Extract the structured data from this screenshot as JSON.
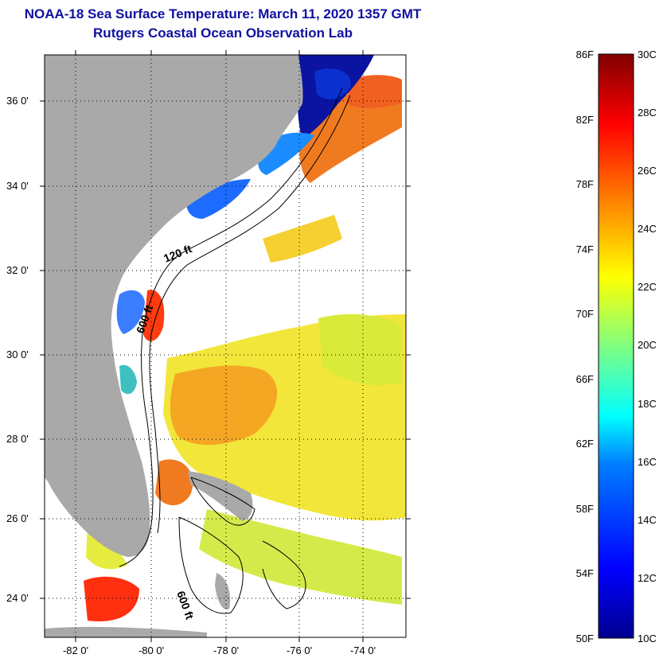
{
  "title": {
    "line1": "NOAA-18 Sea Surface Temperature:  March 11, 2020 1357 GMT",
    "line2": "Rutgers Coastal Ocean Observation Lab"
  },
  "map": {
    "lat_labels": [
      "36 0'",
      "34 0'",
      "32 0'",
      "30 0'",
      "28 0'",
      "26 0'",
      "24 0'"
    ],
    "lon_labels": [
      "-82 0'",
      "-80 0'",
      "-78 0'",
      "-76 0'",
      "-74 0'"
    ],
    "contour_labels": [
      "120 ft",
      "600 ft",
      "600 ft"
    ],
    "colors": {
      "land": "#a9a9a9",
      "cloud": "#ffffff"
    }
  },
  "colorbar": {
    "fahrenheit_labels": [
      "86F",
      "82F",
      "78F",
      "74F",
      "70F",
      "66F",
      "62F",
      "58F",
      "54F",
      "50F"
    ],
    "celsius_labels": [
      "30C",
      "28C",
      "26C",
      "24C",
      "22C",
      "20C",
      "18C",
      "16C",
      "14C",
      "12C",
      "10C"
    ],
    "colormap": [
      "#00008f",
      "#0000ff",
      "#0080ff",
      "#00ffff",
      "#80ff80",
      "#ffff00",
      "#ff8000",
      "#ff0000",
      "#800000"
    ]
  }
}
